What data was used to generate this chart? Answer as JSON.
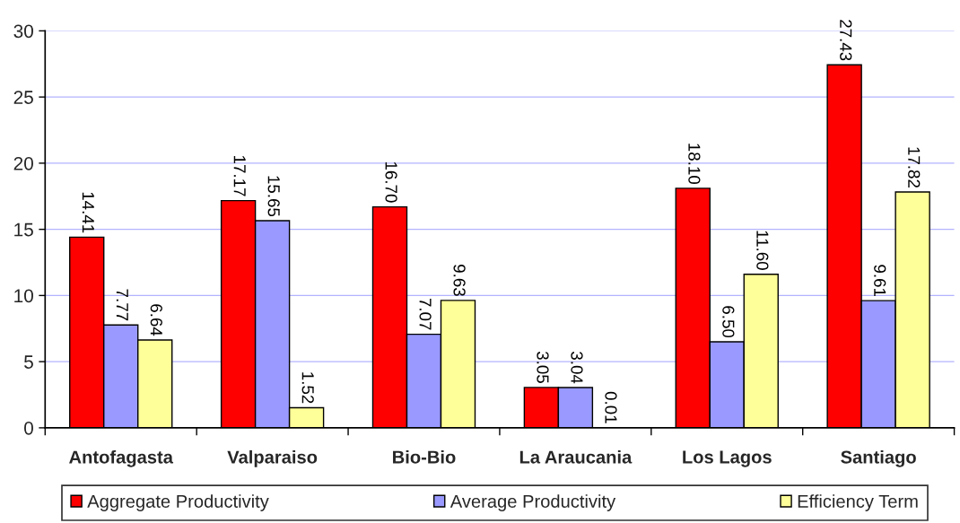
{
  "chart_data": {
    "type": "bar",
    "categories": [
      "Antofagasta",
      "Valparaiso",
      "Bio-Bio",
      "La Araucania",
      "Los Lagos",
      "Santiago"
    ],
    "series": [
      {
        "name": "Aggregate Productivity",
        "color": "#ff0000",
        "values": [
          14.41,
          17.17,
          16.7,
          3.05,
          18.1,
          27.43
        ],
        "value_labels": [
          "14.41",
          "17.17",
          "16.70",
          "3.05",
          "18.10",
          "27.43"
        ]
      },
      {
        "name": "Average Productivity",
        "color": "#9999ff",
        "values": [
          7.77,
          15.65,
          7.07,
          3.04,
          6.5,
          9.61
        ],
        "value_labels": [
          "7.77",
          "15.65",
          "7.07",
          "3.04",
          "6.50",
          "9.61"
        ]
      },
      {
        "name": "Efficiency Term",
        "color": "#ffff99",
        "values": [
          6.64,
          1.52,
          9.63,
          0.01,
          11.6,
          17.82
        ],
        "value_labels": [
          "6.64",
          "1.52",
          "9.63",
          "0.01",
          "11.60",
          "17.82"
        ]
      }
    ],
    "ylim": [
      0,
      30
    ],
    "yticks": [
      0,
      5,
      10,
      15,
      20,
      25,
      30
    ],
    "grid": "y",
    "legend": "bottom"
  }
}
